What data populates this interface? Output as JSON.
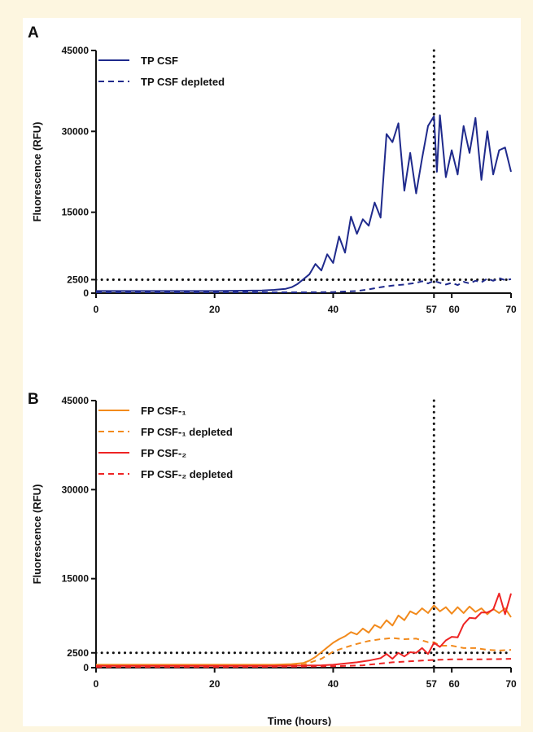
{
  "x_axis_label": "Time (hours)",
  "chart_data": [
    {
      "type": "line",
      "panel": "A",
      "ylabel": "Fluorescence (RFU)",
      "xlim": [
        0,
        70
      ],
      "ylim": [
        0,
        45000
      ],
      "x_ticks": [
        "0",
        "20",
        "40",
        "57",
        "60",
        "70"
      ],
      "y_ticks": [
        "0",
        "2500",
        "15000",
        "30000",
        "45000"
      ],
      "threshold_y": 2500,
      "threshold_x": 57,
      "legend_position": "top-left",
      "grid": false,
      "series": [
        {
          "name": "TP CSF",
          "color": "#1f2a8c",
          "style": "solid",
          "x": [
            0,
            5,
            10,
            15,
            20,
            25,
            28,
            30,
            32,
            33,
            34,
            35,
            36,
            37,
            38,
            39,
            40,
            41,
            42,
            43,
            44,
            45,
            46,
            47,
            48,
            49,
            50,
            51,
            52,
            53,
            54,
            55,
            56,
            57,
            57.5,
            58,
            59,
            60,
            61,
            62,
            63,
            64,
            65,
            66,
            67,
            68,
            69,
            70
          ],
          "y": [
            400,
            400,
            400,
            400,
            400,
            450,
            500,
            600,
            800,
            1100,
            1700,
            2600,
            3500,
            5400,
            4200,
            7200,
            5600,
            10500,
            7500,
            14200,
            11000,
            13700,
            12500,
            16800,
            14000,
            29500,
            28000,
            31500,
            19000,
            26000,
            18500,
            25000,
            31000,
            32800,
            22500,
            33000,
            21500,
            26500,
            22000,
            31000,
            26000,
            32500,
            21000,
            30000,
            22000,
            26500,
            27000,
            22500
          ],
          "x_extra": [],
          "y_extra": []
        },
        {
          "name": "TP CSF depleted",
          "color": "#1f2a8c",
          "style": "dashed",
          "x": [
            0,
            10,
            20,
            30,
            35,
            40,
            42,
            44,
            46,
            48,
            50,
            52,
            54,
            55,
            56,
            57,
            58,
            59,
            60,
            61,
            62,
            63,
            64,
            65,
            66,
            67,
            68,
            69,
            70
          ],
          "y": [
            150,
            150,
            150,
            150,
            150,
            200,
            300,
            400,
            700,
            1100,
            1400,
            1600,
            1900,
            2200,
            1800,
            2300,
            1900,
            1600,
            1900,
            1500,
            2100,
            1800,
            2300,
            2000,
            2700,
            2300,
            2800,
            2400,
            2600
          ]
        }
      ]
    },
    {
      "type": "line",
      "panel": "B",
      "ylabel": "Fluorescence (RFU)",
      "xlim": [
        0,
        70
      ],
      "ylim": [
        0,
        45000
      ],
      "x_ticks": [
        "0",
        "20",
        "40",
        "57",
        "60",
        "70"
      ],
      "y_ticks": [
        "0",
        "2500",
        "15000",
        "30000",
        "45000"
      ],
      "threshold_y": 2500,
      "threshold_x": 57,
      "legend_position": "top-left",
      "grid": false,
      "series": [
        {
          "name": "FP CSF-₁",
          "color": "#f28a1c",
          "style": "solid",
          "x": [
            0,
            10,
            20,
            30,
            33,
            35,
            36,
            37,
            38,
            39,
            40,
            41,
            42,
            43,
            44,
            45,
            46,
            47,
            48,
            49,
            50,
            51,
            52,
            53,
            54,
            55,
            56,
            57,
            58,
            59,
            60,
            61,
            62,
            63,
            64,
            65,
            66,
            67,
            68,
            69,
            70
          ],
          "y": [
            500,
            500,
            500,
            500,
            600,
            800,
            1200,
            1800,
            2600,
            3400,
            4200,
            4800,
            5300,
            6000,
            5600,
            6600,
            5900,
            7200,
            6700,
            8000,
            7100,
            8800,
            8000,
            9500,
            9000,
            10000,
            9200,
            10500,
            9500,
            10200,
            9100,
            10200,
            9200,
            10300,
            9400,
            10000,
            9000,
            9900,
            9200,
            10000,
            8500
          ]
        },
        {
          "name": "FP CSF-₁ depleted",
          "color": "#f28a1c",
          "style": "dashed",
          "x": [
            0,
            10,
            20,
            30,
            35,
            38,
            40,
            42,
            44,
            46,
            48,
            50,
            52,
            54,
            56,
            57,
            58,
            60,
            62,
            64,
            66,
            68,
            70
          ],
          "y": [
            300,
            300,
            300,
            300,
            500,
            1500,
            2700,
            3400,
            4000,
            4500,
            4800,
            5000,
            4800,
            4900,
            4300,
            4300,
            3700,
            3700,
            3300,
            3300,
            3000,
            2900,
            3000
          ]
        },
        {
          "name": "FP CSF-₂",
          "color": "#ee2424",
          "style": "solid",
          "x": [
            0,
            20,
            30,
            35,
            38,
            40,
            42,
            44,
            46,
            48,
            49,
            50,
            51,
            52,
            53,
            54,
            55,
            56,
            57,
            58,
            59,
            60,
            61,
            62,
            63,
            64,
            65,
            66,
            67,
            68,
            69,
            70
          ],
          "y": [
            300,
            300,
            300,
            350,
            400,
            500,
            700,
            900,
            1200,
            1600,
            2300,
            1500,
            2500,
            1900,
            2600,
            2500,
            3300,
            2300,
            4200,
            3500,
            4600,
            5200,
            5100,
            7300,
            8400,
            8300,
            9300,
            9300,
            9800,
            12500,
            9000,
            12500
          ]
        },
        {
          "name": "FP CSF-₂ depleted",
          "color": "#ee2424",
          "style": "dashed",
          "x": [
            0,
            20,
            30,
            40,
            45,
            48,
            50,
            55,
            57,
            60,
            65,
            70
          ],
          "y": [
            100,
            100,
            150,
            250,
            400,
            700,
            900,
            1200,
            1300,
            1400,
            1400,
            1500
          ]
        }
      ]
    }
  ]
}
